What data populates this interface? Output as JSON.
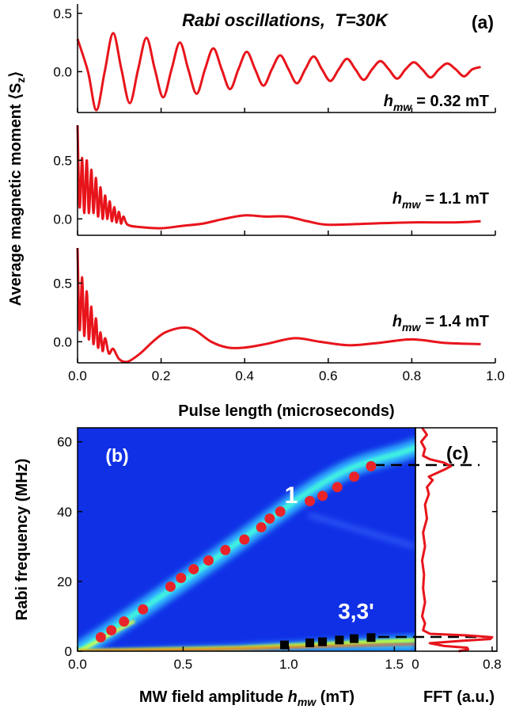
{
  "chart_data": [
    {
      "type": "line",
      "title": "Rabi oscillations,  T=30K",
      "panel_label": "(a)",
      "color": "#e8141b",
      "annotation": {
        "symbol": "h",
        "subscript": "mw",
        "text": "= 0.32 mT"
      },
      "x": [
        0,
        0.025,
        0.045,
        0.065,
        0.085,
        0.105,
        0.125,
        0.145,
        0.165,
        0.185,
        0.205,
        0.225,
        0.245,
        0.265,
        0.285,
        0.305,
        0.325,
        0.345,
        0.365,
        0.385,
        0.405,
        0.425,
        0.445,
        0.465,
        0.485,
        0.505,
        0.525,
        0.545,
        0.565,
        0.585,
        0.605,
        0.625,
        0.645,
        0.665,
        0.685,
        0.705,
        0.725,
        0.745,
        0.765,
        0.785,
        0.805,
        0.825,
        0.845,
        0.865,
        0.885,
        0.905,
        0.925,
        0.945,
        0.965
      ],
      "values": [
        0.28,
        0.0,
        -0.33,
        0.0,
        0.33,
        0.02,
        -0.27,
        0.02,
        0.29,
        0.02,
        -0.22,
        0.02,
        0.25,
        0.02,
        -0.19,
        0.02,
        0.2,
        0.02,
        -0.15,
        0.02,
        0.17,
        0.02,
        -0.12,
        0.02,
        0.14,
        0.02,
        -0.1,
        0.02,
        0.13,
        0.02,
        -0.08,
        0.02,
        0.11,
        0.02,
        -0.07,
        0.02,
        0.09,
        0.02,
        -0.06,
        0.02,
        0.08,
        0.02,
        -0.05,
        0.02,
        0.07,
        0.02,
        -0.04,
        0.02,
        0.04
      ],
      "ylim": [
        -0.35,
        0.58
      ],
      "yticks": [
        {
          "value": 0,
          "label": "0.0"
        },
        0.5
      ]
    },
    {
      "type": "line",
      "color": "#e8141b",
      "ylabel": {
        "text": "Average magnetic moment ⟨S",
        "subscript": "z",
        "end": "⟩"
      },
      "annotation": {
        "symbol": "h",
        "subscript": "mw",
        "text": "= 1.1 mT"
      },
      "x": [
        0,
        0.005,
        0.011,
        0.016,
        0.022,
        0.027,
        0.033,
        0.038,
        0.044,
        0.049,
        0.055,
        0.06,
        0.066,
        0.071,
        0.077,
        0.082,
        0.088,
        0.093,
        0.099,
        0.104,
        0.11,
        0.12,
        0.15,
        0.2,
        0.25,
        0.3,
        0.35,
        0.4,
        0.45,
        0.5,
        0.55,
        0.6,
        0.7,
        0.8,
        0.9,
        0.965
      ],
      "values": [
        0.8,
        0.1,
        0.52,
        0.05,
        0.5,
        0.05,
        0.42,
        0.05,
        0.35,
        0.02,
        0.27,
        0.0,
        0.2,
        0.0,
        0.15,
        -0.02,
        0.1,
        -0.03,
        0.06,
        -0.04,
        0.02,
        -0.05,
        -0.07,
        -0.08,
        -0.06,
        -0.04,
        0.0,
        0.03,
        0.02,
        0.02,
        -0.02,
        -0.05,
        -0.04,
        -0.03,
        -0.03,
        -0.02
      ],
      "ylim": [
        -0.14,
        0.8
      ],
      "yticks": [
        {
          "value": 0,
          "label": "0.0"
        },
        0.5
      ]
    },
    {
      "type": "line",
      "color": "#e8141b",
      "annotation": {
        "symbol": "h",
        "subscript": "mw",
        "text": "= 1.4 mT"
      },
      "xlabel": "Pulse length (microseconds)",
      "x": [
        0,
        0.005,
        0.011,
        0.016,
        0.022,
        0.027,
        0.033,
        0.038,
        0.044,
        0.049,
        0.055,
        0.06,
        0.066,
        0.075,
        0.085,
        0.1,
        0.12,
        0.15,
        0.18,
        0.21,
        0.25,
        0.28,
        0.32,
        0.36,
        0.4,
        0.45,
        0.52,
        0.58,
        0.65,
        0.72,
        0.8,
        0.88,
        0.965
      ],
      "values": [
        0.8,
        0.1,
        0.55,
        0.05,
        0.43,
        0.02,
        0.3,
        -0.02,
        0.2,
        -0.05,
        0.08,
        -0.08,
        0.03,
        -0.1,
        -0.06,
        -0.15,
        -0.17,
        -0.1,
        0.0,
        0.08,
        0.12,
        0.1,
        0.0,
        -0.05,
        -0.05,
        -0.02,
        0.03,
        0.0,
        -0.03,
        -0.01,
        0.02,
        -0.01,
        -0.02
      ],
      "xlim": [
        0,
        1
      ],
      "xticks": [
        {
          "value": 0,
          "label": "0.0"
        },
        0.2,
        0.4,
        0.6,
        0.8,
        {
          "value": 1,
          "label": "1.0"
        }
      ],
      "ylim": [
        -0.18,
        0.8
      ],
      "yticks": [
        {
          "value": 0,
          "label": "0.0"
        },
        0.5
      ]
    },
    {
      "type": "scatter",
      "panel_label": "(b)",
      "ylabel": "Rabi frequency (MHz)",
      "xlabel": {
        "text": "MW field amplitude ",
        "symbol": "h",
        "subscript": "mw",
        "end": " (mT)"
      },
      "series": [
        {
          "name": "1",
          "color": "#e8242a",
          "marker": "circle",
          "x": [
            0.11,
            0.16,
            0.22,
            0.31,
            0.44,
            0.49,
            0.55,
            0.62,
            0.7,
            0.79,
            0.87,
            0.91,
            0.96,
            1.1,
            1.16,
            1.23,
            1.31,
            1.39
          ],
          "values": [
            4,
            6,
            8.5,
            12,
            18.5,
            21,
            23.5,
            26,
            29,
            32,
            35.5,
            38,
            40,
            43,
            44.5,
            47,
            50,
            53
          ]
        },
        {
          "name": "3,3'",
          "color": "#000000",
          "marker": "square",
          "x": [
            0.98,
            1.1,
            1.16,
            1.24,
            1.31,
            1.39
          ],
          "values": [
            1.8,
            2.4,
            2.7,
            3.2,
            3.6,
            3.9
          ]
        }
      ],
      "xlim": [
        0,
        1.6
      ],
      "xticks": [
        {
          "value": 0,
          "label": "0.0"
        },
        0.5,
        {
          "value": 1,
          "label": "1.0"
        },
        1.5
      ],
      "ylim": [
        0,
        64
      ],
      "yticks": [
        0,
        20,
        40,
        60
      ]
    },
    {
      "type": "line",
      "orientation": "horizontal",
      "panel_label": "(c)",
      "color": "#e8141b",
      "xlabel": "FFT (a.u.)",
      "y": [
        0,
        0.5,
        1,
        1.5,
        2.3,
        3,
        3.5,
        4,
        4.5,
        5,
        6,
        8,
        10,
        14,
        18,
        22,
        26,
        30,
        34,
        38,
        42,
        45,
        47,
        49,
        50,
        51,
        52,
        53,
        54,
        55,
        56,
        58,
        60,
        62,
        64
      ],
      "values": [
        0.45,
        0.55,
        0.54,
        0.3,
        0.15,
        0.5,
        0.78,
        0.8,
        0.55,
        0.15,
        0.08,
        0.1,
        0.07,
        0.1,
        0.08,
        0.09,
        0.07,
        0.1,
        0.08,
        0.12,
        0.1,
        0.14,
        0.12,
        0.18,
        0.14,
        0.22,
        0.3,
        0.37,
        0.3,
        0.15,
        0.08,
        0.1,
        0.06,
        0.12,
        0.07
      ],
      "xlim": [
        0,
        0.85
      ],
      "xticks": [
        0,
        0.8
      ]
    }
  ]
}
